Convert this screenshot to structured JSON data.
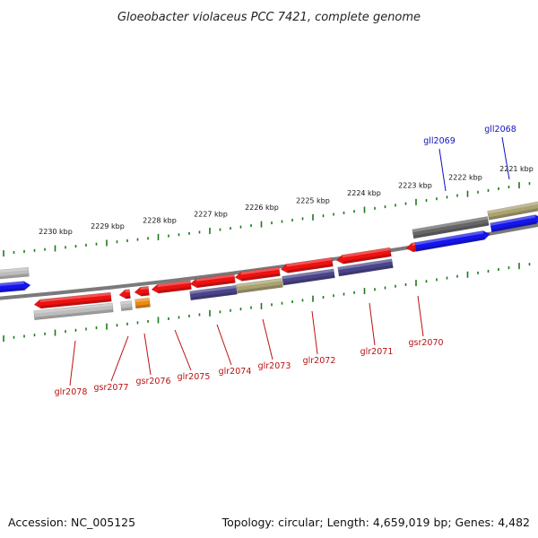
{
  "title": "Gloeobacter violaceus PCC 7421, complete genome",
  "footer": {
    "accession": "Accession: NC_005125",
    "summary": "Topology: circular; Length: 4,659,019 bp; Genes: 4,482"
  },
  "scale_labels": [
    "2230 kbp",
    "2229 kbp",
    "2228 kbp",
    "2227 kbp",
    "2226 kbp",
    "2225 kbp",
    "2224 kbp",
    "2223 kbp",
    "2222 kbp",
    "2221 kbp"
  ],
  "gene_labels_top": [
    "gll2069",
    "gll2068"
  ],
  "gene_labels_bottom": [
    "glr2078",
    "gsr2077",
    "gsr2076",
    "glr2075",
    "glr2074",
    "glr2073",
    "glr2072",
    "glr2071",
    "gsr2070"
  ],
  "colors": {
    "red": "#ee1111",
    "blue": "#1515ee",
    "grey": "#bdbdbd",
    "darkgrey": "#666666",
    "olive": "#aaa270",
    "navy": "#4a448a",
    "orange": "#ee8a10",
    "tick": "#1a7a1a",
    "label_red": "#bb1111",
    "label_blue": "#1111bb"
  }
}
